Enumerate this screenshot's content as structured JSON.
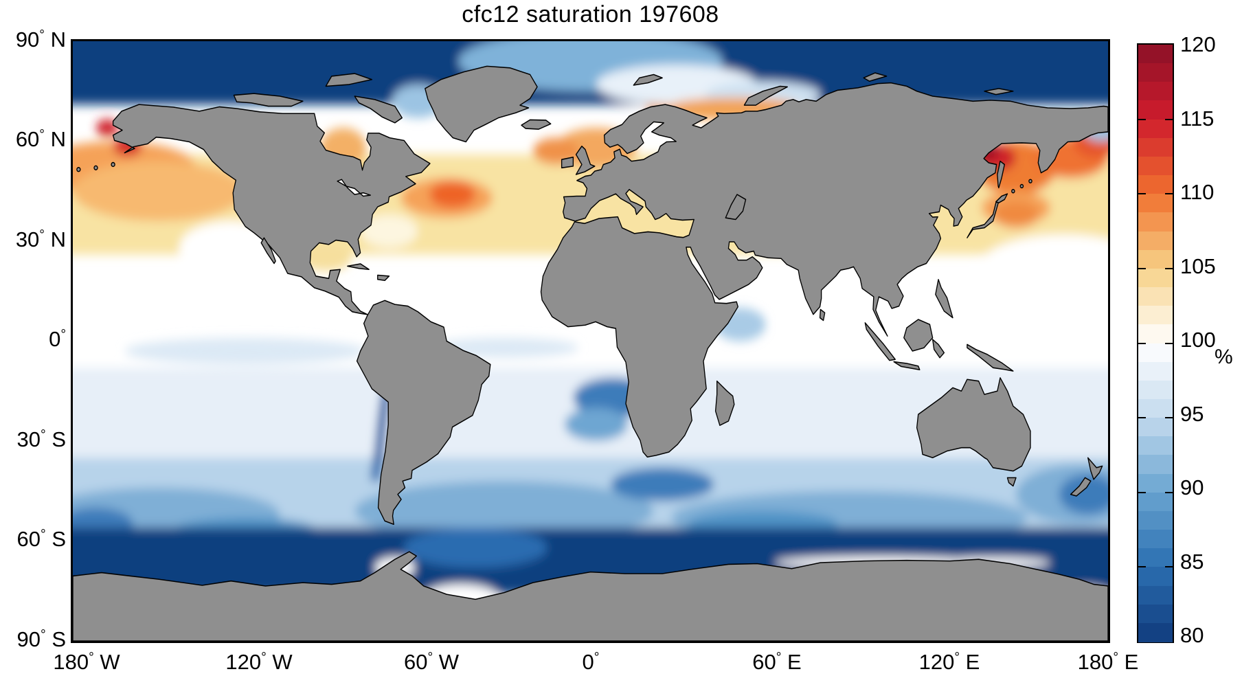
{
  "title": "cfc12 saturation 197608",
  "axes": {
    "deg": "°",
    "x": [
      {
        "v": "180",
        "d": "W"
      },
      {
        "v": "120",
        "d": "W"
      },
      {
        "v": "60",
        "d": "W"
      },
      {
        "v": "0",
        "d": ""
      },
      {
        "v": "60",
        "d": "E"
      },
      {
        "v": "120",
        "d": "E"
      },
      {
        "v": "180",
        "d": "E"
      }
    ],
    "y": [
      {
        "v": "90",
        "d": "N"
      },
      {
        "v": "60",
        "d": "N"
      },
      {
        "v": "30",
        "d": "N"
      },
      {
        "v": "0",
        "d": ""
      },
      {
        "v": "30",
        "d": "S"
      },
      {
        "v": "60",
        "d": "S"
      },
      {
        "v": "90",
        "d": "S"
      }
    ]
  },
  "colorbar": {
    "label": "%",
    "min": 80,
    "max": 120,
    "tick_labels": [
      "120",
      "115",
      "110",
      "105",
      "100",
      "95",
      "90",
      "85",
      "80"
    ],
    "anchor_colors": [
      "#8b1127",
      "#cf1c2d",
      "#f0712f",
      "#f7d187",
      "#ffffff",
      "#c3daee",
      "#69a4d0",
      "#2b6fb1",
      "#0f3a7c"
    ],
    "bands": 32
  },
  "colors": {
    "land": "#8f8f8f",
    "coastline": "#000000",
    "polar_navy": "#10407f",
    "warm_band": "#f8e3a3",
    "orange_core": "#f5a258",
    "red_spot": "#cf2129",
    "south_pale_blue": "#e7eff8",
    "south_mid_blue": "#b7d3ea"
  },
  "chart_data": {
    "type": "heatmap",
    "title": "cfc12 saturation 197608",
    "variable": "CFC-12 saturation",
    "time": "197608",
    "units": "%",
    "projection": "equirectangular",
    "lon_range": [
      -180,
      180
    ],
    "lat_range": [
      -90,
      90
    ],
    "x_tick_labels": [
      "180°W",
      "120°W",
      "60°W",
      "0°",
      "60°E",
      "120°E",
      "180°E"
    ],
    "y_tick_labels": [
      "90°N",
      "60°N",
      "30°N",
      "0°",
      "30°S",
      "60°S",
      "90°S"
    ],
    "colorbar": {
      "min": 80,
      "max": 120,
      "tick_step": 5,
      "label": "%",
      "colormap": "diverging dark-red to white (100) to dark navy-blue, discrete bands"
    },
    "land_mask": "gray continents with black coastlines; Caspian Sea masked gray; white no-data strip along Antarctic ice shelves and south of 84S",
    "regions": [
      {
        "region": "Arctic Ocean (north of ~72N)",
        "approx_saturation_pct": "80-85"
      },
      {
        "region": "Norwegian / Barents Sea fringe",
        "approx_saturation_pct": "103-108"
      },
      {
        "region": "North Pacific 30-55N (Gulf of Alaska to Japan)",
        "approx_saturation_pct": "103-107"
      },
      {
        "region": "Bering Sea / Bristol Bay hotspots",
        "approx_saturation_pct": "112-118"
      },
      {
        "region": "Sea of Okhotsk / Kamchatka (strongest supersaturation)",
        "approx_saturation_pct": "110-120"
      },
      {
        "region": "North Atlantic 30-55N",
        "approx_saturation_pct": "103-106"
      },
      {
        "region": "Gulf Stream off Newfoundland",
        "approx_saturation_pct": "108-112"
      },
      {
        "region": "Hudson Bay",
        "approx_saturation_pct": "105-108"
      },
      {
        "region": "Mediterranean Sea",
        "approx_saturation_pct": "102-104"
      },
      {
        "region": "Subtropical and equatorial oceans (~25N-5S)",
        "approx_saturation_pct": "98-100"
      },
      {
        "region": "Southern subtropics (5S-35S)",
        "approx_saturation_pct": "95-98"
      },
      {
        "region": "Southern Ocean (35S-60S)",
        "approx_saturation_pct": "88-95"
      },
      {
        "region": "Peru-Chile and Benguela upwelling coasts",
        "approx_saturation_pct": "82-90"
      },
      {
        "region": "Antarctic circumpolar coastal band (~58S-72S)",
        "approx_saturation_pct": "80-84"
      }
    ]
  }
}
